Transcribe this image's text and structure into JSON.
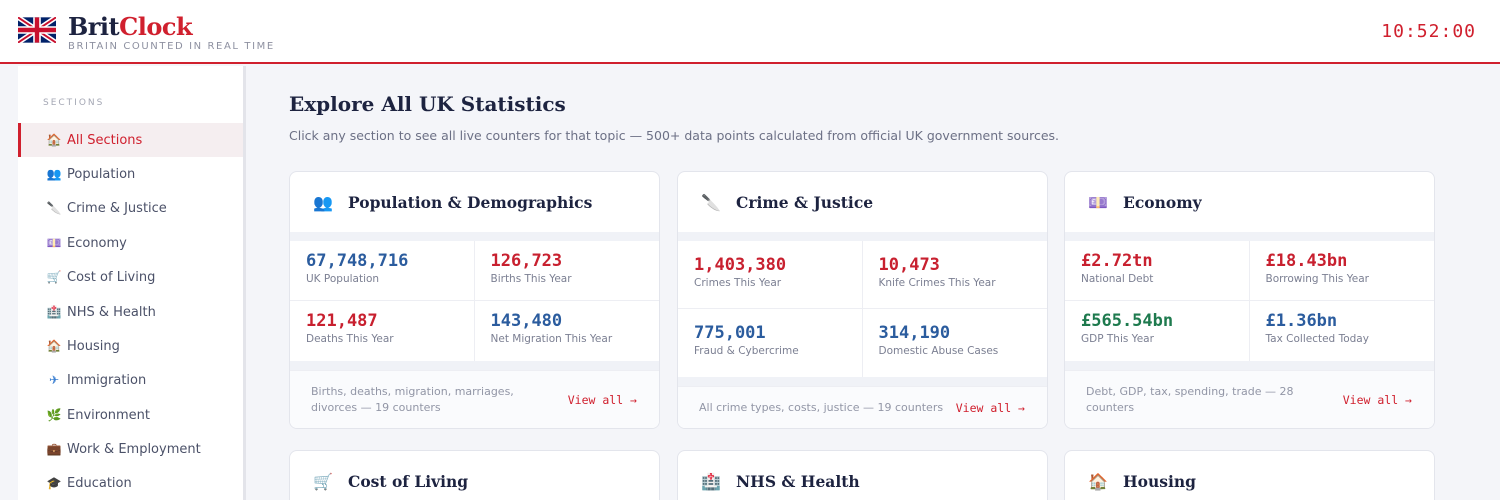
{
  "header": {
    "brand_part1": "Brit",
    "brand_part2": "Clock",
    "tagline": "BRITAIN COUNTED IN REAL TIME",
    "clock": "10:52:00"
  },
  "sidebar": {
    "heading": "SECTIONS",
    "items": [
      {
        "icon": "🏠",
        "label": "All Sections",
        "active": true
      },
      {
        "icon": "👥",
        "label": "Population"
      },
      {
        "icon": "🔪",
        "label": "Crime & Justice"
      },
      {
        "icon": "💷",
        "label": "Economy"
      },
      {
        "icon": "🛒",
        "label": "Cost of Living"
      },
      {
        "icon": "🏥",
        "label": "NHS & Health"
      },
      {
        "icon": "🏠",
        "label": "Housing"
      },
      {
        "icon": "✈",
        "label": "Immigration"
      },
      {
        "icon": "🌿",
        "label": "Environment"
      },
      {
        "icon": "💼",
        "label": "Work & Employment"
      },
      {
        "icon": "🎓",
        "label": "Education"
      }
    ]
  },
  "main": {
    "title": "Explore All UK Statistics",
    "subtitle": "Click any section to see all live counters for that topic — 500+ data points calculated from official UK government sources.",
    "cards": [
      {
        "icon": "👥",
        "title": "Population & Demographics",
        "stats": [
          {
            "value": "67,748,716",
            "label": "UK Population",
            "color": "#2b5c9e"
          },
          {
            "value": "126,723",
            "label": "Births This Year",
            "color": "#c8202f"
          },
          {
            "value": "121,487",
            "label": "Deaths This Year",
            "color": "#c8202f"
          },
          {
            "value": "143,480",
            "label": "Net Migration This Year",
            "color": "#2b5c9e"
          }
        ],
        "footer": "Births, deaths, migration, marriages, divorces — 19 counters",
        "link": "View all →"
      },
      {
        "icon": "🔪",
        "title": "Crime & Justice",
        "stats": [
          {
            "value": "1,403,380",
            "label": "Crimes This Year",
            "color": "#c8202f"
          },
          {
            "value": "10,473",
            "label": "Knife Crimes This Year",
            "color": "#c8202f"
          },
          {
            "value": "775,001",
            "label": "Fraud & Cybercrime",
            "color": "#2b5c9e"
          },
          {
            "value": "314,190",
            "label": "Domestic Abuse Cases",
            "color": "#2b5c9e"
          }
        ],
        "footer": "All crime types, costs, justice — 19 counters",
        "link": "View all →"
      },
      {
        "icon": "💷",
        "title": "Economy",
        "stats": [
          {
            "value": "£2.72tn",
            "label": "National Debt",
            "color": "#c8202f"
          },
          {
            "value": "£18.43bn",
            "label": "Borrowing This Year",
            "color": "#c8202f"
          },
          {
            "value": "£565.54bn",
            "label": "GDP This Year",
            "color": "#1e7a4e"
          },
          {
            "value": "£1.36bn",
            "label": "Tax Collected Today",
            "color": "#2b5c9e"
          }
        ],
        "footer": "Debt, GDP, tax, spending, trade — 28 counters",
        "link": "View all →"
      },
      {
        "icon": "🛒",
        "title": "Cost of Living"
      },
      {
        "icon": "🏥",
        "title": "NHS & Health"
      },
      {
        "icon": "🏠",
        "title": "Housing"
      }
    ]
  }
}
